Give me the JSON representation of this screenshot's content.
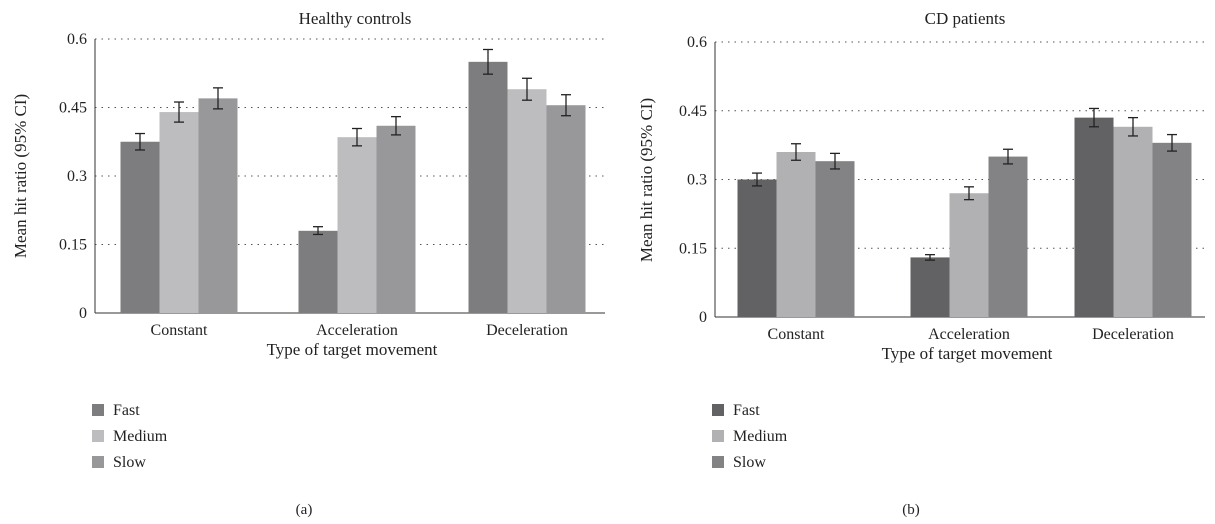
{
  "chart_data": [
    {
      "type": "bar",
      "title": "Healthy controls",
      "xlabel": "Type of target movement",
      "ylabel": "Mean hit ratio (95% CI)",
      "ylim": [
        0,
        0.6
      ],
      "yticks": [
        "0",
        "0.15",
        "0.3",
        "0.45",
        "0.6"
      ],
      "categories": [
        "Constant",
        "Acceleration",
        "Deceleration"
      ],
      "series": [
        {
          "name": "Fast",
          "values": [
            0.375,
            0.18,
            0.55
          ],
          "ci": [
            [
              0.357,
              0.393
            ],
            [
              0.172,
              0.189
            ],
            [
              0.523,
              0.577
            ]
          ]
        },
        {
          "name": "Medium",
          "values": [
            0.44,
            0.385,
            0.49
          ],
          "ci": [
            [
              0.418,
              0.462
            ],
            [
              0.366,
              0.404
            ],
            [
              0.466,
              0.514
            ]
          ]
        },
        {
          "name": "Slow",
          "values": [
            0.47,
            0.41,
            0.455
          ],
          "ci": [
            [
              0.447,
              0.493
            ],
            [
              0.39,
              0.43
            ],
            [
              0.432,
              0.478
            ]
          ]
        }
      ],
      "colors": [
        "#7d7d7f",
        "#bdbdc0",
        "#98989b"
      ],
      "grid": true,
      "legend": "bottom-left",
      "panel_label": "(a)"
    },
    {
      "type": "bar",
      "title": "CD patients",
      "xlabel": "Type of target movement",
      "ylabel": "Mean hit ratio (95% CI)",
      "ylim": [
        0,
        0.6
      ],
      "yticks": [
        "0",
        "0.15",
        "0.3",
        "0.45",
        "0.6"
      ],
      "categories": [
        "Constant",
        "Acceleration",
        "Deceleration"
      ],
      "series": [
        {
          "name": "Fast",
          "values": [
            0.3,
            0.13,
            0.435
          ],
          "ci": [
            [
              0.286,
              0.314
            ],
            [
              0.124,
              0.136
            ],
            [
              0.415,
              0.455
            ]
          ]
        },
        {
          "name": "Medium",
          "values": [
            0.36,
            0.27,
            0.415
          ],
          "ci": [
            [
              0.342,
              0.378
            ],
            [
              0.256,
              0.284
            ],
            [
              0.395,
              0.435
            ]
          ]
        },
        {
          "name": "Slow",
          "values": [
            0.34,
            0.35,
            0.38
          ],
          "ci": [
            [
              0.323,
              0.357
            ],
            [
              0.334,
              0.366
            ],
            [
              0.362,
              0.398
            ]
          ]
        }
      ],
      "colors": [
        "#626264",
        "#b1b1b3",
        "#838385"
      ],
      "grid": true,
      "legend": "bottom-left",
      "panel_label": "(b)"
    }
  ]
}
